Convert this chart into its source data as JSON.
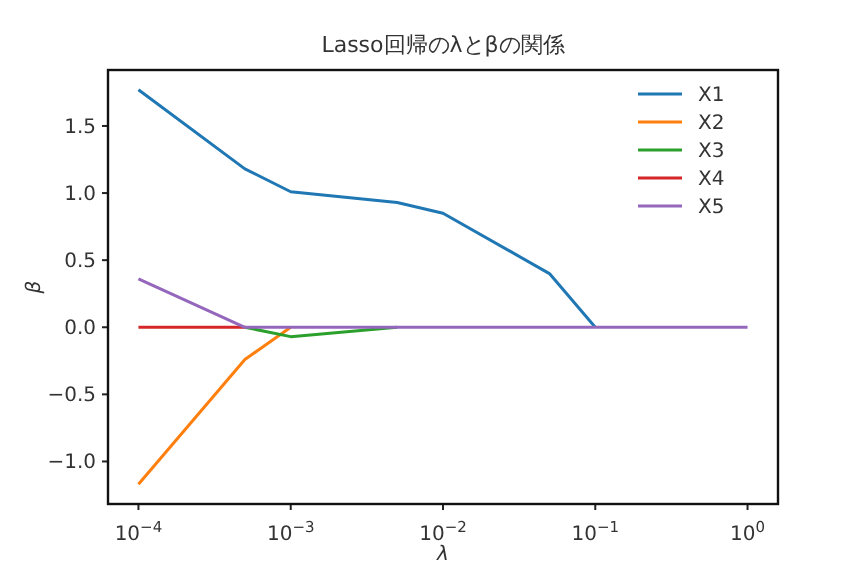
{
  "chart_data": {
    "type": "line",
    "title": "Lasso回帰のλとβの関係",
    "xlabel": "λ",
    "ylabel": "β",
    "x": [
      0.0001,
      0.0005,
      0.001,
      0.005,
      0.01,
      0.05,
      0.1,
      0.5,
      1
    ],
    "series": [
      {
        "name": "X1",
        "color": "#1f77b4",
        "values": [
          1.77,
          1.18,
          1.01,
          0.93,
          0.85,
          0.4,
          0,
          null,
          null
        ]
      },
      {
        "name": "X2",
        "color": "#ff7f0e",
        "values": [
          -1.17,
          -0.24,
          0,
          null,
          null,
          null,
          null,
          null,
          null
        ]
      },
      {
        "name": "X3",
        "color": "#2ca02c",
        "values": [
          null,
          0,
          -0.07,
          0,
          null,
          null,
          null,
          null,
          null
        ]
      },
      {
        "name": "X4",
        "color": "#d62728",
        "values": [
          0,
          0,
          null,
          null,
          null,
          null,
          null,
          null,
          null
        ]
      },
      {
        "name": "X5",
        "color": "#9467bd",
        "values": [
          0.36,
          0,
          0,
          0,
          0,
          0,
          0,
          0,
          0
        ]
      }
    ],
    "log": "x",
    "xlim": [
      6.31e-05,
      1.585
    ],
    "ylim": [
      -1.317,
      1.917
    ],
    "xticks": [
      {
        "value": 0.0001,
        "label": "10$^{−4}$"
      },
      {
        "value": 0.001,
        "label": "10$^{−3}$"
      },
      {
        "value": 0.01,
        "label": "10$^{−2}$"
      },
      {
        "value": 0.1,
        "label": "10$^{−1}$"
      },
      {
        "value": 1,
        "label": "10$^{0}$"
      }
    ],
    "yticks": [
      {
        "value": -1,
        "label": "−1.0"
      },
      {
        "value": -0.5,
        "label": "−0.5"
      },
      {
        "value": 0,
        "label": "0.0"
      },
      {
        "value": 0.5,
        "label": "0.5"
      },
      {
        "value": 1,
        "label": "1.0"
      },
      {
        "value": 1.5,
        "label": "1.5"
      }
    ],
    "grid": false,
    "legend": "top right",
    "line_style": "solid",
    "marker": "none"
  }
}
